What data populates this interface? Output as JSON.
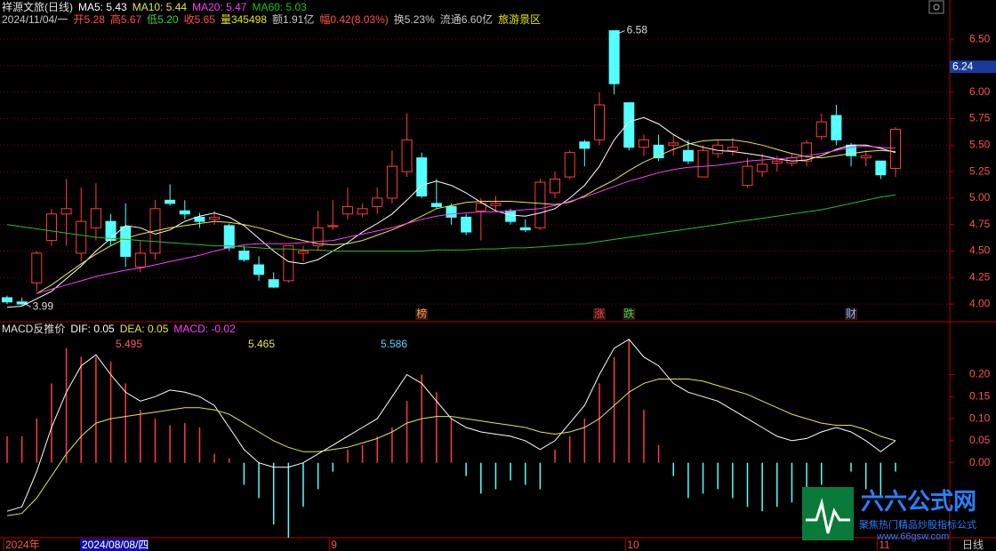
{
  "header": {
    "stock_name": "祥源文旅(日线)",
    "info": [
      {
        "text": "2024/11/04/一",
        "color": "#c8c8c8"
      },
      {
        "text": "开5.28",
        "color": "#ff5050"
      },
      {
        "text": "高5.67",
        "color": "#ff5050"
      },
      {
        "text": "低5.20",
        "color": "#3cd23c"
      },
      {
        "text": "收5.65",
        "color": "#ff5050"
      },
      {
        "text": "量345498",
        "color": "#e6e600"
      },
      {
        "text": "额1.91亿",
        "color": "#c8c8c8"
      },
      {
        "text": "幅0.42(8.03%)",
        "color": "#ff5050"
      },
      {
        "text": "换5.23%",
        "color": "#c8c8c8"
      },
      {
        "text": "流通6.60亿",
        "color": "#c8c8c8"
      },
      {
        "text": "旅游景区",
        "color": "#e6e600"
      }
    ]
  },
  "chart_data": [
    {
      "type": "candlestick",
      "categories": [
        "2024年",
        null,
        null,
        null,
        null,
        null,
        null,
        null,
        null,
        null,
        null,
        null,
        null,
        null,
        null,
        null,
        null,
        null,
        null,
        null,
        null,
        null,
        "9",
        null,
        null,
        null,
        null,
        null,
        null,
        null,
        null,
        null,
        null,
        null,
        null,
        null,
        null,
        null,
        null,
        null,
        null,
        null,
        "10",
        null,
        null,
        null,
        null,
        null,
        null,
        null,
        null,
        null,
        null,
        null,
        null,
        null,
        null,
        null,
        null,
        "11",
        null
      ],
      "cursor_label": "2024/08/08/四",
      "period_label": "日线",
      "open": [
        4.06,
        4.02,
        4.2,
        4.6,
        4.85,
        4.48,
        4.72,
        4.78,
        4.73,
        4.35,
        4.48,
        4.98,
        4.88,
        4.82,
        4.8,
        4.74,
        4.5,
        4.37,
        4.23,
        4.22,
        4.48,
        4.55,
        4.73,
        4.85,
        4.85,
        4.92,
        5.0,
        5.25,
        5.38,
        4.95,
        4.92,
        4.82,
        4.88,
        4.93,
        4.88,
        4.72,
        4.72,
        5.05,
        5.2,
        5.53,
        5.55,
        6.58,
        5.9,
        5.48,
        5.5,
        5.5,
        5.45,
        5.2,
        5.42,
        5.45,
        5.12,
        5.25,
        5.33,
        5.33,
        5.35,
        5.58,
        5.78,
        5.5,
        5.38,
        5.35,
        5.28
      ],
      "high": [
        4.08,
        4.06,
        4.5,
        4.9,
        5.18,
        5.1,
        5.14,
        4.85,
        4.95,
        4.6,
        4.98,
        5.13,
        4.98,
        4.86,
        4.88,
        4.76,
        4.55,
        4.45,
        4.3,
        4.55,
        4.55,
        4.88,
        4.98,
        5.1,
        4.95,
        5.1,
        5.45,
        5.8,
        5.43,
        5.18,
        4.95,
        4.85,
        5.0,
        5.02,
        4.9,
        4.8,
        5.18,
        5.25,
        5.45,
        5.55,
        6.0,
        6.58,
        5.9,
        5.6,
        5.6,
        5.6,
        5.55,
        5.5,
        5.55,
        5.57,
        5.38,
        5.42,
        5.4,
        5.42,
        5.55,
        5.8,
        5.88,
        5.52,
        5.45,
        5.35,
        5.67
      ],
      "low": [
        4.0,
        3.99,
        4.12,
        4.55,
        4.55,
        4.4,
        4.6,
        4.55,
        4.35,
        4.3,
        4.42,
        4.93,
        4.8,
        4.72,
        4.75,
        4.5,
        4.4,
        4.22,
        4.15,
        4.2,
        4.4,
        4.5,
        4.7,
        4.8,
        4.82,
        4.85,
        4.95,
        5.2,
        5.0,
        4.9,
        4.75,
        4.65,
        4.6,
        4.88,
        4.75,
        4.68,
        4.7,
        5.0,
        5.18,
        5.3,
        5.5,
        5.98,
        5.45,
        5.4,
        5.35,
        5.4,
        5.32,
        5.2,
        5.38,
        5.4,
        5.1,
        5.2,
        5.25,
        5.3,
        5.3,
        5.55,
        5.5,
        5.3,
        5.3,
        5.18,
        5.2
      ],
      "close": [
        4.02,
        4.0,
        4.48,
        4.85,
        4.9,
        4.78,
        4.9,
        4.6,
        4.45,
        4.48,
        4.9,
        4.95,
        4.85,
        4.78,
        4.82,
        4.53,
        4.42,
        4.28,
        4.16,
        4.55,
        4.5,
        4.72,
        4.74,
        4.92,
        4.9,
        5.0,
        5.3,
        5.55,
        5.02,
        4.92,
        4.82,
        4.68,
        4.95,
        4.95,
        4.78,
        4.7,
        5.15,
        5.18,
        5.43,
        5.47,
        5.88,
        6.08,
        5.48,
        5.55,
        5.38,
        5.52,
        5.35,
        5.45,
        5.5,
        5.48,
        5.3,
        5.32,
        5.35,
        5.38,
        5.52,
        5.72,
        5.55,
        5.4,
        5.4,
        5.22,
        5.65
      ],
      "up_color": "#ff3c3c",
      "down_color": "#54ffff",
      "series": [
        {
          "name": "MA5: 5.43",
          "color": "#ffffff",
          "values": [
            3.97,
            3.98,
            4.05,
            4.12,
            4.24,
            4.36,
            4.5,
            4.62,
            4.74,
            4.72,
            4.66,
            4.7,
            4.78,
            4.83,
            4.86,
            4.82,
            4.74,
            4.62,
            4.5,
            4.4,
            4.38,
            4.42,
            4.5,
            4.58,
            4.68,
            4.76,
            4.85,
            4.98,
            5.12,
            5.16,
            5.12,
            5.05,
            4.96,
            4.88,
            4.84,
            4.83,
            4.86,
            4.9,
            5.0,
            5.12,
            5.3,
            5.55,
            5.72,
            5.76,
            5.7,
            5.6,
            5.52,
            5.48,
            5.45,
            5.44,
            5.42,
            5.4,
            5.37,
            5.35,
            5.36,
            5.4,
            5.46,
            5.5,
            5.5,
            5.47,
            5.43
          ]
        },
        {
          "name": "MA10: 5.44",
          "color": "#e6e64a",
          "values": [
            null,
            null,
            4.1,
            4.18,
            4.28,
            4.38,
            4.47,
            4.55,
            4.62,
            4.66,
            4.69,
            4.72,
            4.74,
            4.76,
            4.78,
            4.77,
            4.75,
            4.72,
            4.68,
            4.63,
            4.6,
            4.57,
            4.56,
            4.57,
            4.6,
            4.65,
            4.7,
            4.76,
            4.83,
            4.9,
            4.93,
            4.96,
            4.97,
            4.97,
            4.97,
            4.96,
            4.95,
            4.94,
            4.96,
            5.02,
            5.1,
            5.17,
            5.26,
            5.34,
            5.4,
            5.46,
            5.51,
            5.54,
            5.55,
            5.55,
            5.53,
            5.5,
            5.46,
            5.42,
            5.39,
            5.38,
            5.4,
            5.42,
            5.44,
            5.45,
            5.44
          ]
        },
        {
          "name": "MA20: 5.47",
          "color": "#ff3cff",
          "values": [
            null,
            null,
            4.1,
            4.14,
            4.18,
            4.22,
            4.26,
            4.29,
            4.32,
            4.34,
            4.37,
            4.4,
            4.43,
            4.46,
            4.5,
            4.53,
            4.56,
            4.57,
            4.57,
            4.57,
            4.58,
            4.59,
            4.6,
            4.63,
            4.66,
            4.69,
            4.72,
            4.76,
            4.8,
            4.83,
            4.85,
            4.86,
            4.87,
            4.87,
            4.88,
            4.89,
            4.9,
            4.93,
            4.97,
            5.01,
            5.06,
            5.11,
            5.16,
            5.2,
            5.24,
            5.27,
            5.29,
            5.3,
            5.31,
            5.33,
            5.35,
            5.36,
            5.37,
            5.38,
            5.4,
            5.42,
            5.45,
            5.48,
            5.49,
            5.48,
            5.47
          ]
        },
        {
          "name": "MA60: 5.03",
          "color": "#22c022",
          "values": [
            4.75,
            4.73,
            4.71,
            4.69,
            4.67,
            4.65,
            4.63,
            4.62,
            4.61,
            4.6,
            4.59,
            4.58,
            4.57,
            4.56,
            4.55,
            4.55,
            4.54,
            4.53,
            4.52,
            4.52,
            4.51,
            4.51,
            4.5,
            4.5,
            4.5,
            4.5,
            4.5,
            4.5,
            4.5,
            4.51,
            4.51,
            4.51,
            4.52,
            4.52,
            4.53,
            4.53,
            4.54,
            4.55,
            4.56,
            4.57,
            4.59,
            4.61,
            4.63,
            4.65,
            4.67,
            4.69,
            4.71,
            4.73,
            4.75,
            4.77,
            4.79,
            4.81,
            4.83,
            4.85,
            4.87,
            4.89,
            4.92,
            4.95,
            4.98,
            5.01,
            5.03
          ]
        }
      ],
      "event_markers": [
        null,
        null,
        null,
        null,
        null,
        null,
        null,
        null,
        null,
        null,
        null,
        null,
        null,
        null,
        null,
        null,
        null,
        null,
        null,
        null,
        null,
        null,
        null,
        null,
        null,
        null,
        null,
        null,
        {
          "text": "榜",
          "color": "#ff9a3c"
        },
        null,
        null,
        null,
        null,
        null,
        null,
        null,
        null,
        null,
        null,
        null,
        {
          "text": "涨",
          "color": "#ff3c3c"
        },
        null,
        {
          "text": "跌",
          "color": "#3cd23c"
        },
        null,
        null,
        null,
        null,
        null,
        null,
        null,
        null,
        null,
        null,
        null,
        null,
        null,
        null,
        {
          "text": "财",
          "color": "#7fb2ff"
        },
        null,
        null,
        null
      ],
      "price_marker": {
        "value": 6.24,
        "label": "6.24"
      },
      "ylim": [
        3.85,
        6.87
      ],
      "yticks": [
        {
          "value": 6.5,
          "label": "6.50"
        },
        6.25,
        {
          "value": 6.0,
          "label": "6.00"
        },
        5.75,
        {
          "value": 5.5,
          "label": "5.50"
        },
        5.25,
        {
          "value": 5.0,
          "label": "5.00"
        },
        4.75,
        {
          "value": 4.5,
          "label": "4.50"
        },
        4.25,
        {
          "value": 4.0,
          "label": "4.00"
        }
      ],
      "grid": true
    },
    {
      "type": "macd",
      "title": "MACD反推价",
      "up_color": "#ff3c3c",
      "down_color": "#54ffff",
      "series": [
        {
          "name": "DIF: 0.05",
          "color": "#ffffff",
          "kind": "line",
          "values": [
            -0.11,
            -0.1,
            -0.02,
            0.08,
            0.16,
            0.22,
            0.245,
            0.2,
            0.16,
            0.14,
            0.15,
            0.165,
            0.16,
            0.15,
            0.13,
            0.08,
            0.03,
            0.0,
            -0.01,
            -0.01,
            0.0,
            0.02,
            0.04,
            0.06,
            0.08,
            0.1,
            0.15,
            0.2,
            0.18,
            0.14,
            0.1,
            0.08,
            0.07,
            0.065,
            0.06,
            0.05,
            0.03,
            0.05,
            0.09,
            0.13,
            0.2,
            0.26,
            0.28,
            0.24,
            0.22,
            0.18,
            0.16,
            0.15,
            0.14,
            0.12,
            0.1,
            0.08,
            0.06,
            0.05,
            0.055,
            0.07,
            0.08,
            0.07,
            0.05,
            0.025,
            0.05
          ]
        },
        {
          "name": "DEA: 0.05",
          "color": "#e6e64a",
          "kind": "line",
          "values": [
            -0.12,
            -0.115,
            -0.08,
            -0.03,
            0.02,
            0.06,
            0.09,
            0.1,
            0.105,
            0.11,
            0.115,
            0.12,
            0.125,
            0.125,
            0.12,
            0.11,
            0.09,
            0.07,
            0.05,
            0.035,
            0.025,
            0.025,
            0.03,
            0.035,
            0.045,
            0.055,
            0.07,
            0.09,
            0.1,
            0.105,
            0.105,
            0.1,
            0.095,
            0.09,
            0.085,
            0.08,
            0.07,
            0.065,
            0.07,
            0.08,
            0.1,
            0.13,
            0.16,
            0.18,
            0.19,
            0.19,
            0.19,
            0.185,
            0.175,
            0.165,
            0.155,
            0.14,
            0.125,
            0.11,
            0.1,
            0.09,
            0.085,
            0.085,
            0.075,
            0.06,
            0.05
          ]
        },
        {
          "name": "MACD: -0.02",
          "color": "#ff3cff",
          "kind": "bar",
          "values": [
            0.06,
            0.06,
            0.1,
            0.18,
            0.26,
            0.24,
            0.24,
            0.23,
            0.18,
            0.12,
            0.1,
            0.085,
            0.09,
            0.08,
            0.02,
            0.01,
            -0.05,
            -0.08,
            -0.14,
            -0.17,
            -0.1,
            -0.06,
            -0.02,
            0.03,
            0.04,
            0.06,
            0.08,
            0.14,
            0.2,
            0.16,
            0.1,
            -0.03,
            -0.07,
            -0.06,
            -0.04,
            -0.05,
            -0.06,
            0.03,
            0.06,
            0.1,
            0.18,
            0.24,
            0.28,
            0.12,
            0.04,
            -0.03,
            -0.08,
            -0.07,
            -0.06,
            -0.08,
            -0.1,
            -0.11,
            -0.1,
            -0.09,
            -0.07,
            -0.05,
            0.0,
            -0.02,
            -0.06,
            -0.08,
            -0.02
          ]
        }
      ],
      "reference_prices": [
        {
          "label": "5.495",
          "color": "#ff5a5a"
        },
        {
          "label": "5.465",
          "color": "#e6e64a"
        },
        {
          "label": "5.586",
          "color": "#54d8ff"
        }
      ],
      "ylim": [
        -0.17,
        0.32
      ],
      "yticks": [
        {
          "value": 0.2,
          "label": "0.20"
        },
        0.15,
        {
          "value": 0.1,
          "label": "0.10"
        },
        0.05,
        {
          "value": 0,
          "label": "0.00"
        }
      ],
      "grid": false
    }
  ],
  "brand": {
    "title": "六六公式网",
    "slogan": "聚焦热门精品炒股指标公式",
    "url": "www.66gsw.com"
  }
}
